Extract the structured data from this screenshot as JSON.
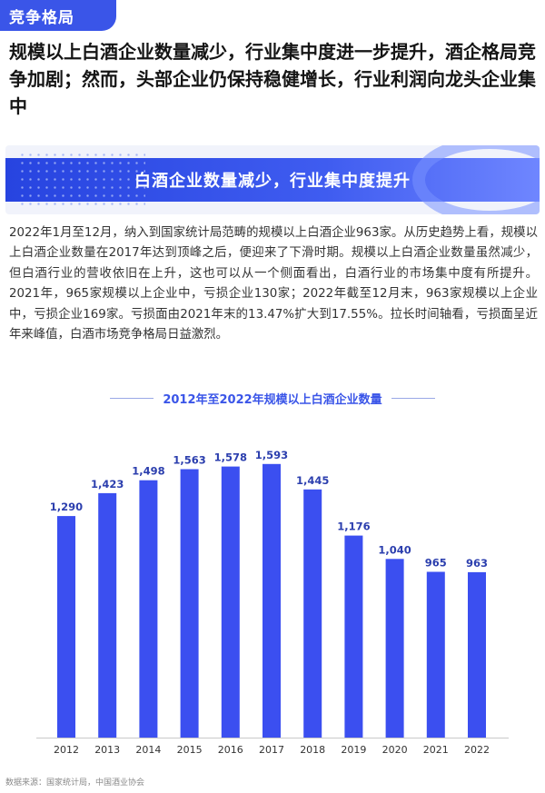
{
  "tag": "竞争格局",
  "headline": "规模以上白酒企业数量减少，行业集中度进一步提升，酒企格局竞争加剧；然而，头部企业仍保持稳健增长，行业利润向龙头企业集中",
  "banner_title": "白酒企业数量减少，行业集中度提升",
  "paragraph": "2022年1月至12月，纳入到国家统计局范畴的规模以上白酒企业963家。从历史趋势上看，规模以上白酒企业数量在2017年达到顶峰之后，便迎来了下滑时期。规模以上白酒企业数量虽然减少，但白酒行业的营收依旧在上升，这也可以从一个侧面看出，白酒行业的市场集中度有所提升。2021年，965家规模以上企业中，亏损企业130家；2022年截至12月末，963家规模以上企业中，亏损企业169家。亏损面由2021年末的13.47%扩大到17.55%。拉长时间轴看，亏损面呈近年来峰值，白酒市场竞争格局日益激烈。",
  "source": "数据来源：国家统计局，中国酒业协会",
  "colors": {
    "accent": "#3a55e8",
    "bar": "#3b4ff0",
    "label": "#2c3fae"
  },
  "chart_data": {
    "type": "bar",
    "title": "2012年至2022年规模以上白酒企业数量",
    "categories": [
      "2012",
      "2013",
      "2014",
      "2015",
      "2016",
      "2017",
      "2018",
      "2019",
      "2020",
      "2021",
      "2022"
    ],
    "values": [
      1290,
      1423,
      1498,
      1563,
      1578,
      1593,
      1445,
      1176,
      1040,
      965,
      963
    ],
    "value_labels": [
      "1,290",
      "1,423",
      "1,498",
      "1,563",
      "1,578",
      "1,593",
      "1,445",
      "1,176",
      "1,040",
      "965",
      "963"
    ],
    "xlabel": "",
    "ylabel": "",
    "ylim": [
      0,
      1650
    ],
    "grid": false,
    "legend": "none"
  }
}
